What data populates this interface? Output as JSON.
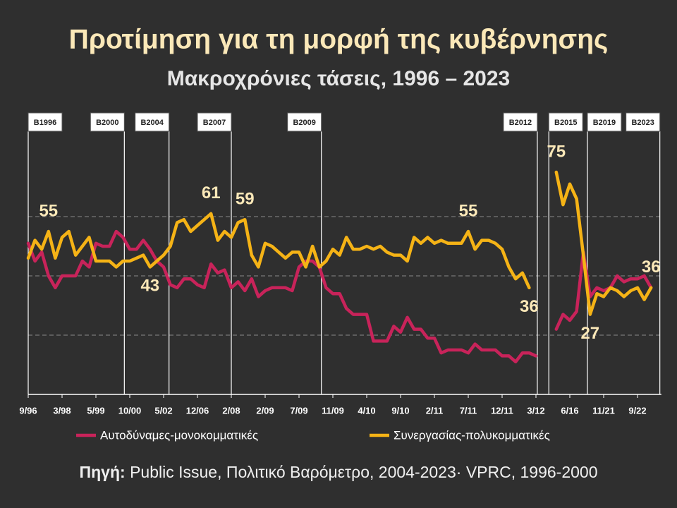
{
  "chart_data": {
    "type": "line",
    "title": "Προτίμηση για τη μορφή της κυβέρνησης",
    "subtitle": "Μακροχρόνιες τάσεις, 1996 – 2023",
    "source_label": "Πηγή:",
    "source": "Public Issue, Πολιτικό Βαρόμετρο, 2004-2023· VPRC, 1996-2000",
    "categories": [
      "9/96",
      null,
      null,
      null,
      null,
      "3/98",
      null,
      null,
      null,
      null,
      "5/99",
      null,
      null,
      null,
      null,
      "10/00",
      null,
      null,
      null,
      null,
      "5/02",
      null,
      null,
      null,
      null,
      "12/06",
      null,
      null,
      null,
      null,
      "2/08",
      null,
      null,
      null,
      null,
      "2/09",
      null,
      null,
      null,
      null,
      "7/09",
      null,
      null,
      null,
      null,
      "11/09",
      null,
      null,
      null,
      null,
      "4/10",
      null,
      null,
      null,
      null,
      "9/10",
      null,
      null,
      null,
      null,
      "2/11",
      null,
      null,
      null,
      null,
      "7/11",
      null,
      null,
      null,
      null,
      "12/11",
      null,
      null,
      null,
      null,
      "3/12",
      null,
      null,
      null,
      null,
      "6/16",
      null,
      null,
      null,
      null,
      "11/21",
      null,
      null,
      null,
      null,
      "9/22",
      null,
      null
    ],
    "ylim": [
      0,
      80
    ],
    "yticks": [
      20,
      40,
      60
    ],
    "grid": true,
    "series": [
      {
        "name": "Αυτοδύναμες-μονοκομματικές",
        "color": "#c8235a",
        "values": [
          51,
          45,
          48,
          40,
          36,
          40,
          40,
          40,
          45,
          43,
          51,
          50,
          50,
          55,
          53,
          49,
          49,
          52,
          49,
          45,
          43,
          37,
          36,
          39,
          39,
          37,
          36,
          44,
          41,
          42,
          36,
          38,
          35,
          39,
          33,
          35,
          36,
          36,
          36,
          35,
          43,
          45,
          45,
          43,
          36,
          34,
          34,
          29,
          27,
          27,
          27,
          18,
          18,
          18,
          23,
          21,
          26,
          22,
          22,
          19,
          19,
          14,
          15,
          15,
          15,
          14,
          17,
          15,
          15,
          15,
          13,
          13,
          11,
          14,
          14,
          13,
          null,
          null,
          22,
          27,
          25,
          28,
          48,
          33,
          36,
          35,
          36,
          40,
          38,
          39,
          39,
          40,
          36
        ]
      },
      {
        "name": "Συνεργασίας-πολυκομματικές",
        "color": "#f5b316",
        "values": [
          46,
          52,
          49,
          55,
          46,
          53,
          55,
          47,
          50,
          53,
          45,
          45,
          45,
          43,
          45,
          45,
          46,
          47,
          43,
          45,
          47,
          50,
          58,
          59,
          55,
          57,
          59,
          61,
          52,
          55,
          53,
          58,
          59,
          47,
          43,
          51,
          50,
          48,
          46,
          48,
          48,
          43,
          50,
          43,
          45,
          49,
          47,
          53,
          49,
          49,
          50,
          49,
          50,
          48,
          47,
          47,
          45,
          53,
          51,
          53,
          51,
          52,
          51,
          51,
          51,
          55,
          49,
          52,
          52,
          51,
          49,
          43,
          39,
          41,
          36,
          null,
          null,
          null,
          75,
          64,
          71,
          66,
          47,
          27,
          34,
          33,
          36,
          35,
          33,
          35,
          36,
          32,
          36
        ],
        "labeled_points": [
          3,
          18,
          27,
          32,
          65,
          74,
          78,
          83,
          92
        ]
      }
    ],
    "elections": [
      {
        "label": "B1996",
        "at": 0
      },
      {
        "label": "B2000",
        "at": 14.2
      },
      {
        "label": "B2004",
        "at": 20.8
      },
      {
        "label": "B2007",
        "at": 30
      },
      {
        "label": "B2009",
        "at": 43.3
      },
      {
        "label": "B2012",
        "at": 75.2
      },
      {
        "label": "B2015",
        "at": 76.9
      },
      {
        "label": "B2019",
        "at": 82.6
      },
      {
        "label": "B2023",
        "at": 93.3
      }
    ]
  }
}
